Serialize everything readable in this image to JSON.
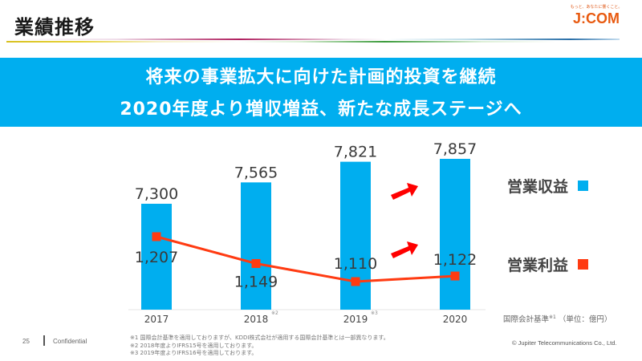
{
  "header": {
    "title": "業績推移",
    "logo_tagline": "もっと、あなたに響くこと。",
    "logo_text": "J:COM"
  },
  "banner": {
    "line1": "将来の事業拡大に向けた計画的投資を継続",
    "line2": "2020年度より増収増益、新たな成長ステージへ"
  },
  "colors": {
    "banner": "#00aeef",
    "revenue_bar": "#00aeef",
    "operating_profit_line": "#ff3b12",
    "growth_arrow": "#ff0000"
  },
  "chart_data": {
    "type": "bar",
    "categories": [
      "2017",
      "2018",
      "2019",
      "2020"
    ],
    "category_notes": [
      "",
      "※2",
      "※3",
      ""
    ],
    "series": [
      {
        "name": "営業収益",
        "type": "bar",
        "values": [
          7300,
          7565,
          7821,
          7857
        ],
        "labels": [
          "7,300",
          "7,565",
          "7,821",
          "7,857"
        ]
      },
      {
        "name": "営業利益",
        "type": "line",
        "values": [
          1207,
          1149,
          1110,
          1122
        ],
        "labels": [
          "1,207",
          "1,149",
          "1,110",
          "1,122"
        ]
      }
    ],
    "legend": [
      "営業収益",
      "営業利益"
    ],
    "legend_position": "right",
    "unit_note": "国際会計基準",
    "unit_note_sup": "※1",
    "unit_label": "（単位：億円）",
    "annotations": [
      "growth-arrow-revenue",
      "growth-arrow-profit"
    ],
    "grid": false
  },
  "footer": {
    "page_number": "25",
    "confidential": "Confidential",
    "notes": [
      "※1 国際会計基準を適用しておりますが、KDDI株式会社が適用する国際会計基準とは一部異なります。",
      "※2 2018年度よりIFRS15号を適用しております。",
      "※3 2019年度よりIFRS16号を適用しております。"
    ],
    "copyright": "© Jupiter Telecommunications Co., Ltd."
  }
}
